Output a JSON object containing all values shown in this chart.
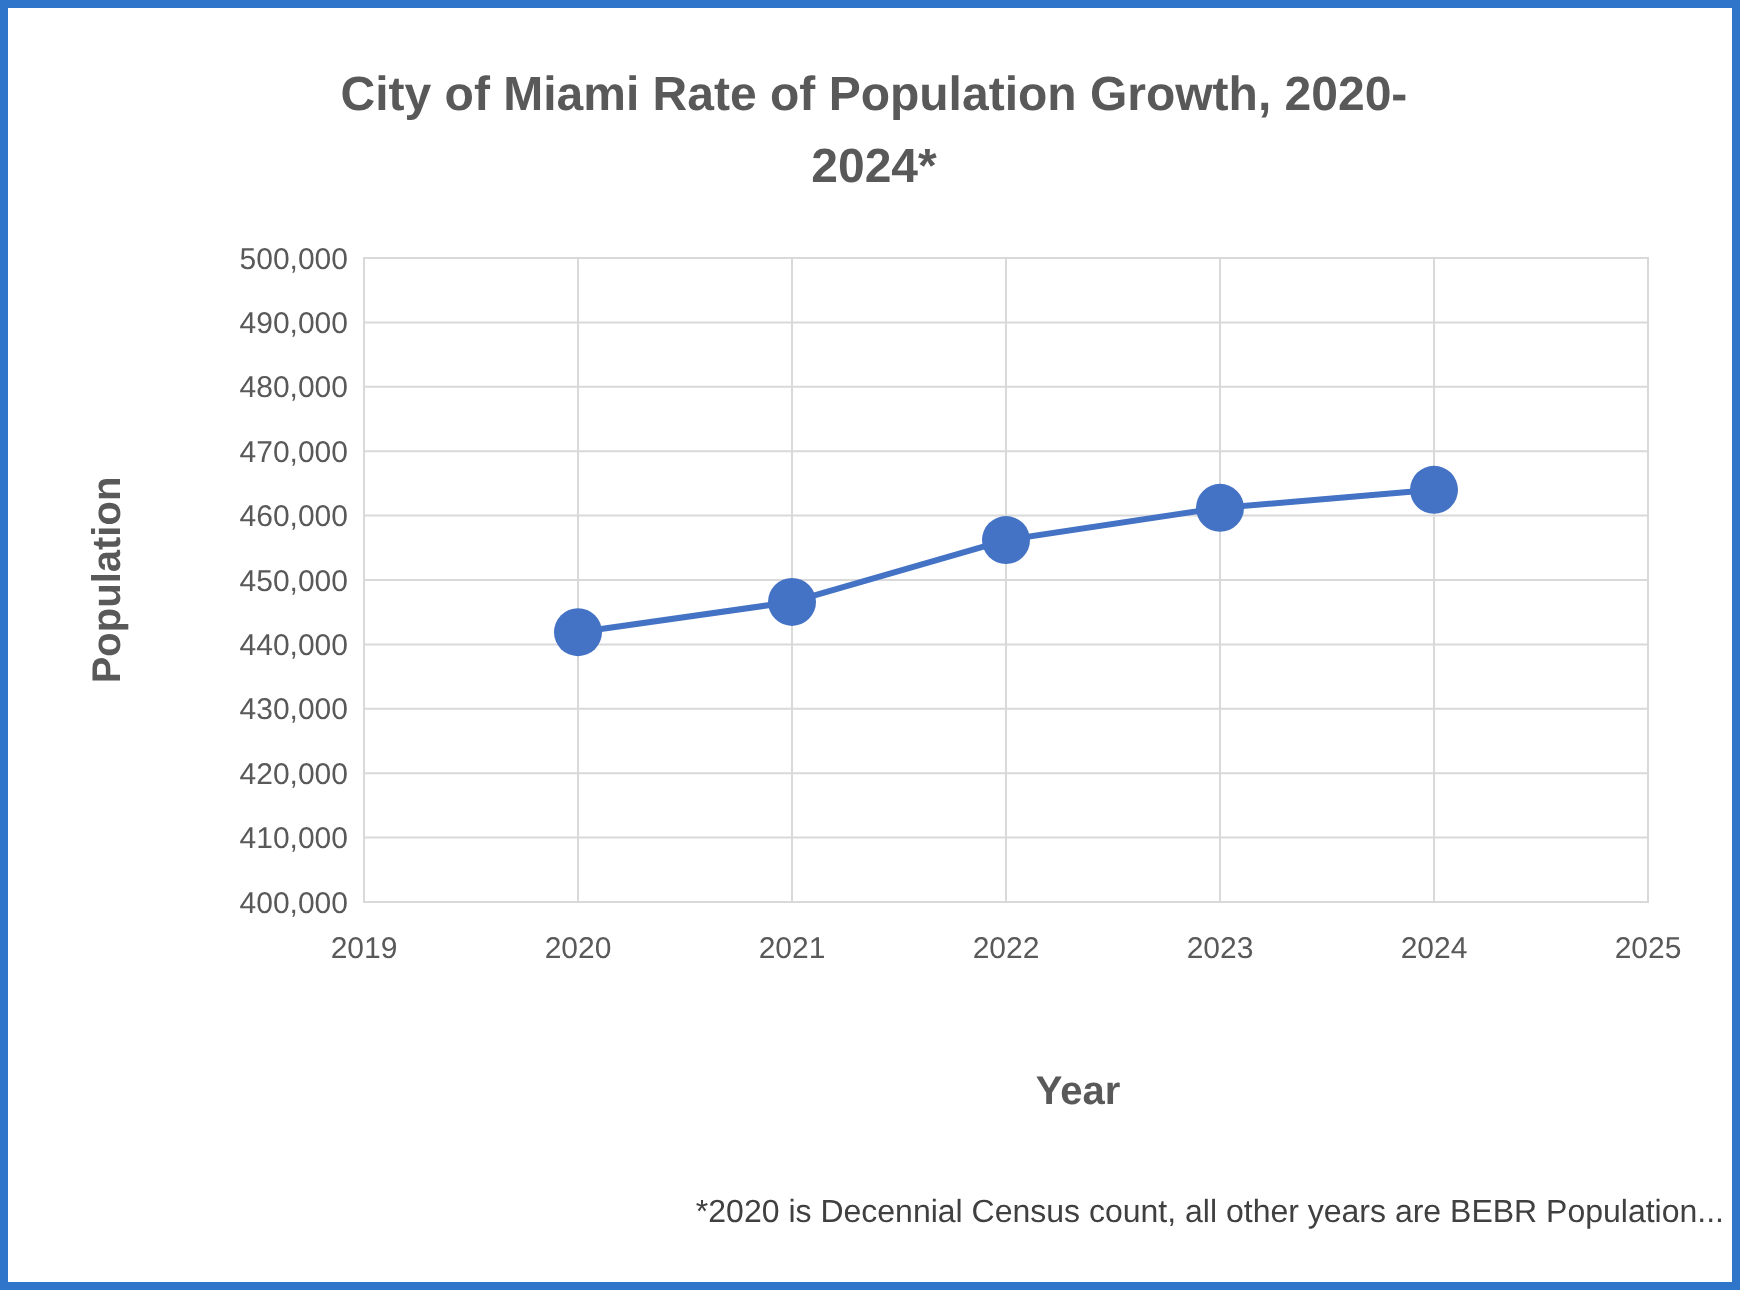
{
  "chart_data": {
    "type": "line",
    "title": "City of Miami Rate of Population Growth, 2020-2024*",
    "xlabel": "Year",
    "ylabel": "Population",
    "x": [
      2020,
      2021,
      2022,
      2023,
      2024
    ],
    "series": [
      {
        "color": "#4472c4",
        "values": [
          441900,
          446600,
          456200,
          461200,
          464000
        ]
      }
    ],
    "xlim": [
      2019,
      2025
    ],
    "xticks": [
      2019,
      2020,
      2021,
      2022,
      2023,
      2024,
      2025
    ],
    "ylim": [
      400000,
      500000
    ],
    "yticks": [
      {
        "value": 400000,
        "label": "400,000"
      },
      {
        "value": 410000,
        "label": "410,000"
      },
      {
        "value": 420000,
        "label": "420,000"
      },
      {
        "value": 430000,
        "label": "430,000"
      },
      {
        "value": 440000,
        "label": "440,000"
      },
      {
        "value": 450000,
        "label": "450,000"
      },
      {
        "value": 460000,
        "label": "460,000"
      },
      {
        "value": 470000,
        "label": "470,000"
      },
      {
        "value": 480000,
        "label": "480,000"
      },
      {
        "value": 490000,
        "label": "490,000"
      },
      {
        "value": 500000,
        "label": "500,000"
      }
    ],
    "grid": true,
    "marker": "circle",
    "line_style": "solid",
    "annotations": [
      "*2020 is Decennial Census count, all other years are BEBR Population..."
    ]
  }
}
